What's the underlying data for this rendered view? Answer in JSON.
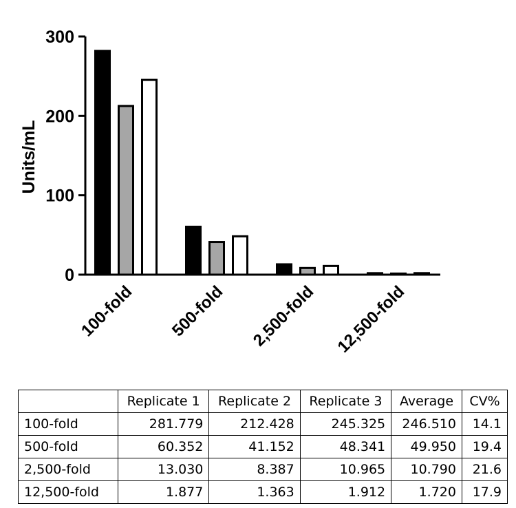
{
  "chart_data": {
    "type": "bar",
    "categories": [
      "100-fold",
      "500-fold",
      "2,500-fold",
      "12,500-fold"
    ],
    "series": [
      {
        "values": [
          281.779,
          60.352,
          13.03,
          1.877
        ],
        "color": "#000000"
      },
      {
        "values": [
          212.428,
          41.152,
          8.387,
          1.363
        ],
        "color": "#a6a6a6"
      },
      {
        "values": [
          245.325,
          48.341,
          10.965,
          1.912
        ],
        "color": "#ffffff"
      }
    ],
    "ylabel": "Units/mL",
    "ylim": [
      0,
      300
    ],
    "yticks": [
      "0",
      "100",
      "200",
      "300"
    ],
    "grid": false
  },
  "table": {
    "headers": [
      "",
      "Replicate 1",
      "Replicate 2",
      "Replicate 3",
      "Average",
      "CV%"
    ],
    "rows": [
      [
        "100-fold",
        "281.779",
        "212.428",
        "245.325",
        "246.510",
        "14.1"
      ],
      [
        "500-fold",
        "60.352",
        "41.152",
        "48.341",
        "49.950",
        "19.4"
      ],
      [
        "2,500-fold",
        "13.030",
        "8.387",
        "10.965",
        "10.790",
        "21.6"
      ],
      [
        "12,500-fold",
        "1.877",
        "1.363",
        "1.912",
        "1.720",
        "17.9"
      ]
    ]
  }
}
